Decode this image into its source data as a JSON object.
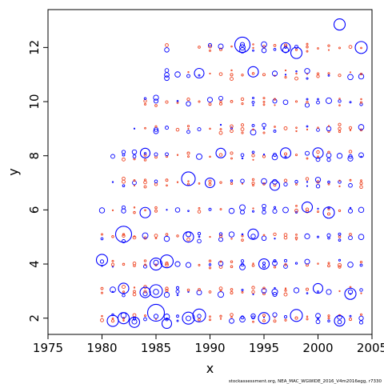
{
  "chart_data": {
    "type": "scatter",
    "title": "",
    "xlabel": "x",
    "ylabel": "y",
    "footer": "stockassessment.org, NEA_MAC_WGWIDE_2016_V4m2016egg, r7330",
    "xlim": [
      1975,
      2005
    ],
    "ylim": [
      1.4,
      13.4
    ],
    "xticks": [
      1975,
      1980,
      1985,
      1990,
      1995,
      2000,
      2005
    ],
    "yticks": [
      2,
      4,
      6,
      8,
      10,
      12
    ],
    "grid": false,
    "legend": "none",
    "ages": [
      2,
      3,
      4,
      5,
      6,
      7,
      8,
      9,
      10,
      11,
      12
    ],
    "year_start": 1980,
    "year_end": 2004,
    "colors": {
      "positive": "#0000ff",
      "negative": "#ee4422"
    },
    "series": [
      {
        "name": "",
        "marker": "circle-open",
        "color": "#0000ff",
        "points": [
          {
            "x": 1980,
            "y": 4.15,
            "s": 0.8
          },
          {
            "x": 1981,
            "y": 1.9,
            "s": 0.8
          },
          {
            "x": 1982,
            "y": 2.0,
            "s": 0.8
          },
          {
            "x": 1982,
            "y": 3.1,
            "s": 0.7
          },
          {
            "x": 1982,
            "y": 5.1,
            "s": 1.4
          },
          {
            "x": 1983,
            "y": 1.85,
            "s": 0.7
          },
          {
            "x": 1984,
            "y": 2.95,
            "s": 0.7
          },
          {
            "x": 1984,
            "y": 5.9,
            "s": 0.7
          },
          {
            "x": 1984,
            "y": 8.1,
            "s": 0.6
          },
          {
            "x": 1985,
            "y": 2.2,
            "s": 1.5
          },
          {
            "x": 1985,
            "y": 3.0,
            "s": 1.0
          },
          {
            "x": 1985,
            "y": 4.0,
            "s": 0.9
          },
          {
            "x": 1986,
            "y": 4.1,
            "s": 1.0
          },
          {
            "x": 1986,
            "y": 1.8,
            "s": 0.6
          },
          {
            "x": 1988,
            "y": 7.15,
            "s": 1.1
          },
          {
            "x": 1988,
            "y": 2.0,
            "s": 0.9
          },
          {
            "x": 1988,
            "y": 5.0,
            "s": 0.7
          },
          {
            "x": 1989,
            "y": 2.1,
            "s": 1.0
          },
          {
            "x": 1989,
            "y": 11.05,
            "s": 0.6
          },
          {
            "x": 1990,
            "y": 7.0,
            "s": 0.6
          },
          {
            "x": 1991,
            "y": 8.1,
            "s": 0.6
          },
          {
            "x": 1993,
            "y": 12.1,
            "s": 1.3
          },
          {
            "x": 1994,
            "y": 5.1,
            "s": 0.7
          },
          {
            "x": 1994,
            "y": 11.1,
            "s": 0.7
          },
          {
            "x": 1995,
            "y": 2.0,
            "s": 0.8
          },
          {
            "x": 1995,
            "y": 4.0,
            "s": 0.7
          },
          {
            "x": 1996,
            "y": 6.9,
            "s": 0.6
          },
          {
            "x": 1997,
            "y": 12.0,
            "s": 0.6
          },
          {
            "x": 1997,
            "y": 8.1,
            "s": 0.7
          },
          {
            "x": 1998,
            "y": 2.1,
            "s": 0.9
          },
          {
            "x": 1998,
            "y": 11.8,
            "s": 0.8
          },
          {
            "x": 1999,
            "y": 6.1,
            "s": 0.7
          },
          {
            "x": 2000,
            "y": 3.1,
            "s": 0.6
          },
          {
            "x": 2000,
            "y": 8.1,
            "s": 0.7
          },
          {
            "x": 2001,
            "y": 5.9,
            "s": 0.8
          },
          {
            "x": 2002,
            "y": 12.85,
            "s": 0.8
          },
          {
            "x": 2002,
            "y": 1.9,
            "s": 0.7
          },
          {
            "x": 2003,
            "y": 2.9,
            "s": 0.8
          },
          {
            "x": 2004,
            "y": 12.0,
            "s": 0.9
          }
        ]
      }
    ]
  }
}
